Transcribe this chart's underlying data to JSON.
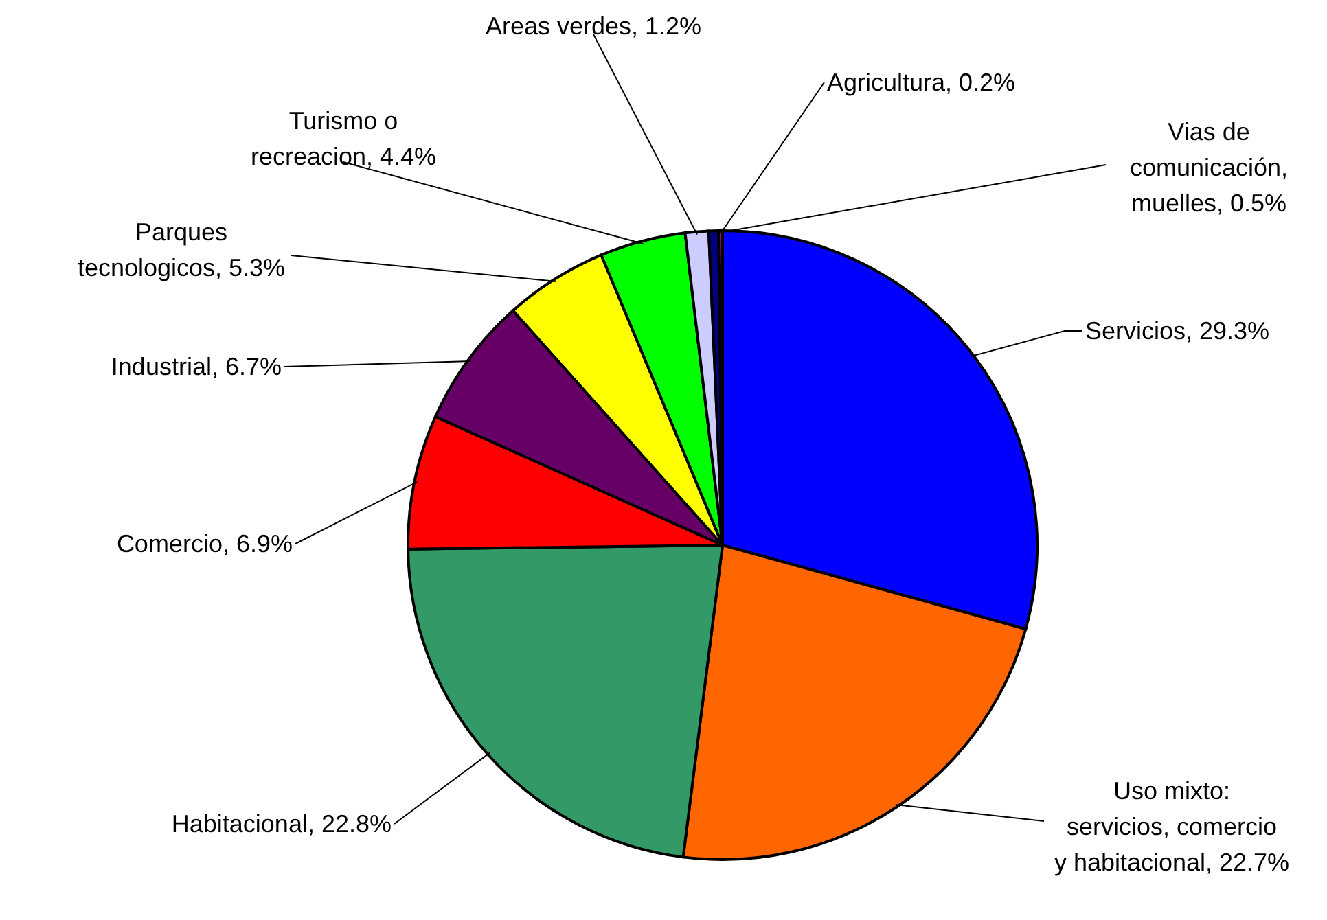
{
  "chart_data": {
    "type": "pie",
    "categories": [
      "Servicios",
      "Uso mixto: servicios, comercio y habitacional",
      "Habitacional",
      "Comercio",
      "Industrial",
      "Parques tecnologicos",
      "Turismo o recreacion",
      "Areas verdes",
      "Vias de comunicación, muelles",
      "Agricultura"
    ],
    "values": [
      29.3,
      22.7,
      22.8,
      6.9,
      6.7,
      5.3,
      4.4,
      1.2,
      0.5,
      0.2
    ],
    "value_labels": [
      "29.3%",
      "22.7%",
      "22.8%",
      "6.9%",
      "6.7%",
      "5.3%",
      "4.4%",
      "1.2%",
      "0.5%",
      "0.2%"
    ],
    "colors": [
      "#0000ff",
      "#ff6600",
      "#339966",
      "#ff0000",
      "#660066",
      "#ffff00",
      "#00ff00",
      "#ccccff",
      "#000080",
      "#ff00cc"
    ]
  }
}
